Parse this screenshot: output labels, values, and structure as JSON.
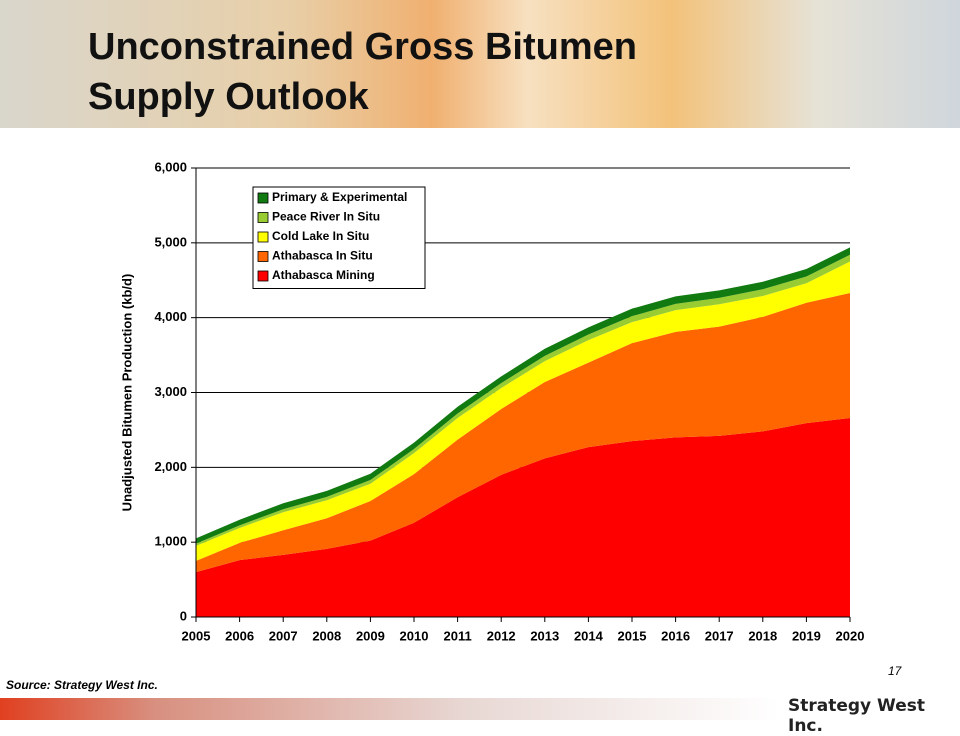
{
  "chart_data": {
    "type": "stacked_area",
    "title": "Unconstrained Gross Bitumen Supply Outlook",
    "y_label": "Unadjusted Bitumen Production (kb/d)",
    "categories": [
      "2005",
      "2006",
      "2007",
      "2008",
      "2009",
      "2010",
      "2011",
      "2012",
      "2013",
      "2014",
      "2015",
      "2016",
      "2017",
      "2018",
      "2019",
      "2020"
    ],
    "series": [
      {
        "name": "Athabasca Mining",
        "color": "#ff0000",
        "values": [
          600,
          760,
          830,
          910,
          1020,
          1260,
          1600,
          1900,
          2120,
          2270,
          2350,
          2400,
          2420,
          2480,
          2590,
          2660
        ]
      },
      {
        "name": "Athabasca In Situ",
        "color": "#ff6600",
        "values": [
          150,
          230,
          330,
          410,
          530,
          650,
          770,
          880,
          1020,
          1130,
          1310,
          1410,
          1460,
          1530,
          1610,
          1670
        ]
      },
      {
        "name": "Cold Lake In Situ",
        "color": "#ffff00",
        "values": [
          200,
          200,
          240,
          240,
          230,
          280,
          290,
          280,
          280,
          300,
          280,
          290,
          300,
          280,
          260,
          420
        ]
      },
      {
        "name": "Peace River In Situ",
        "color": "#99cc33",
        "values": [
          30,
          35,
          40,
          45,
          50,
          55,
          60,
          65,
          70,
          75,
          80,
          85,
          85,
          90,
          90,
          90
        ]
      },
      {
        "name": "Primary & Experimental",
        "color": "#117a11",
        "values": [
          70,
          75,
          80,
          80,
          85,
          85,
          90,
          90,
          95,
          95,
          100,
          100,
          100,
          100,
          100,
          100
        ]
      }
    ],
    "ylim": [
      0,
      6000
    ],
    "yticks": [
      0,
      {
        "value": 1000,
        "label": "1,000"
      },
      {
        "value": 2000,
        "label": "2,000"
      },
      {
        "value": 3000,
        "label": "3,000"
      },
      {
        "value": 4000,
        "label": "4,000"
      },
      {
        "value": 5000,
        "label": "5,000"
      },
      {
        "value": 6000,
        "label": "6,000"
      }
    ],
    "grid": true,
    "legend": "upper left"
  },
  "slide": {
    "source": "Source: Strategy West Inc.",
    "page_number": 17,
    "logo": "Strategy West Inc."
  }
}
